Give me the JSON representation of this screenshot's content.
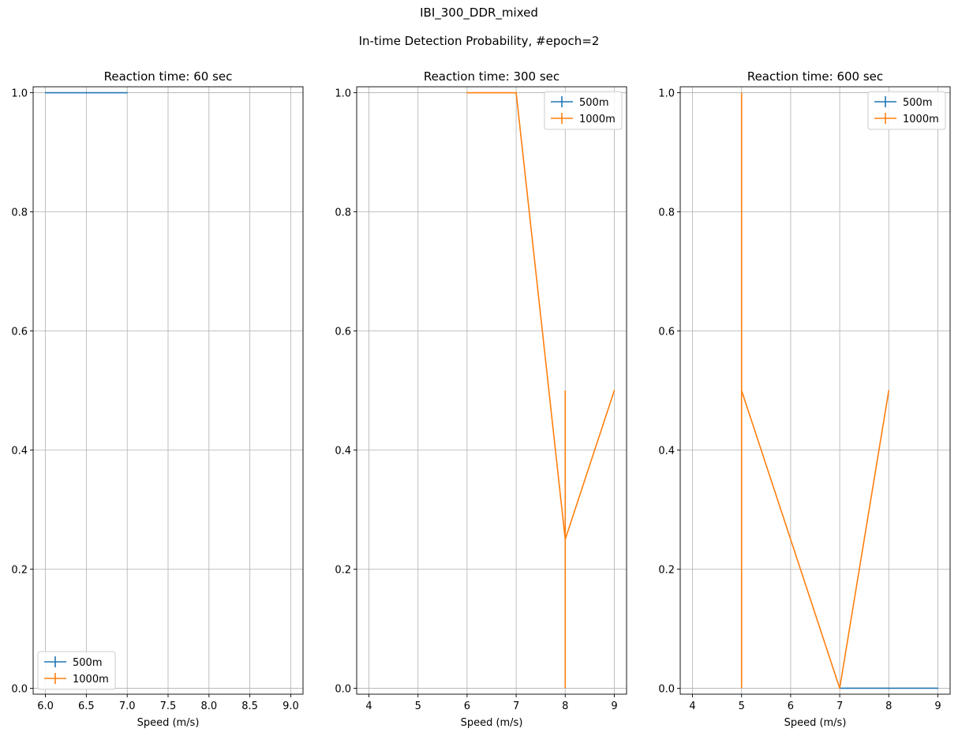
{
  "figure": {
    "title": "IBI_300_DDR_mixed",
    "subtitle": "In-time Detection Probability, #epoch=2"
  },
  "chart_data": [
    {
      "type": "line",
      "title": "Reaction time: 60 sec",
      "xlabel": "Speed (m/s)",
      "ylabel": "",
      "xlim": [
        5.85,
        9.15
      ],
      "ylim": [
        -0.01,
        1.01
      ],
      "xticks": [
        6.0,
        6.5,
        7.0,
        7.5,
        8.0,
        8.5,
        9.0
      ],
      "xtick_labels": [
        "6.0",
        "6.5",
        "7.0",
        "7.5",
        "8.0",
        "8.5",
        "9.0"
      ],
      "yticks": [
        0.0,
        0.2,
        0.4,
        0.6,
        0.8,
        1.0
      ],
      "ytick_labels": [
        "0.0",
        "0.2",
        "0.4",
        "0.6",
        "0.8",
        "1.0"
      ],
      "grid": true,
      "legend_position": "lower-left",
      "series": [
        {
          "name": "500m",
          "color": "#1f77b4",
          "points": [
            {
              "x": 6,
              "y": 1.0,
              "err": 0
            },
            {
              "x": 7,
              "y": 1.0,
              "err": 0
            }
          ]
        },
        {
          "name": "1000m",
          "color": "#ff7f0e",
          "points": []
        }
      ]
    },
    {
      "type": "line",
      "title": "Reaction time: 300 sec",
      "xlabel": "Speed (m/s)",
      "ylabel": "",
      "xlim": [
        3.75,
        9.25
      ],
      "ylim": [
        -0.01,
        1.01
      ],
      "xticks": [
        4,
        5,
        6,
        7,
        8,
        9
      ],
      "xtick_labels": [
        "4",
        "5",
        "6",
        "7",
        "8",
        "9"
      ],
      "yticks": [
        0.0,
        0.2,
        0.4,
        0.6,
        0.8,
        1.0
      ],
      "ytick_labels": [
        "0.0",
        "0.2",
        "0.4",
        "0.6",
        "0.8",
        "1.0"
      ],
      "grid": true,
      "legend_position": "upper-right",
      "series": [
        {
          "name": "500m",
          "color": "#1f77b4",
          "points": []
        },
        {
          "name": "1000m",
          "color": "#ff7f0e",
          "points": [
            {
              "x": 6,
              "y": 1.0,
              "err": 0
            },
            {
              "x": 7,
              "y": 1.0,
              "err": 0
            },
            {
              "x": 8,
              "y": 0.25,
              "err": 0.25
            },
            {
              "x": 9,
              "y": 0.5,
              "err": 0
            }
          ]
        }
      ]
    },
    {
      "type": "line",
      "title": "Reaction time: 600 sec",
      "xlabel": "Speed (m/s)",
      "ylabel": "",
      "xlim": [
        3.75,
        9.25
      ],
      "ylim": [
        -0.01,
        1.01
      ],
      "xticks": [
        4,
        5,
        6,
        7,
        8,
        9
      ],
      "xtick_labels": [
        "4",
        "5",
        "6",
        "7",
        "8",
        "9"
      ],
      "yticks": [
        0.0,
        0.2,
        0.4,
        0.6,
        0.8,
        1.0
      ],
      "ytick_labels": [
        "0.0",
        "0.2",
        "0.4",
        "0.6",
        "0.8",
        "1.0"
      ],
      "grid": true,
      "legend_position": "upper-right",
      "series": [
        {
          "name": "500m",
          "color": "#1f77b4",
          "points": [
            {
              "x": 7,
              "y": 0.0,
              "err": 0
            },
            {
              "x": 8,
              "y": 0.0,
              "err": 0
            },
            {
              "x": 9,
              "y": 0.0,
              "err": 0
            }
          ]
        },
        {
          "name": "1000m",
          "color": "#ff7f0e",
          "points": [
            {
              "x": 5,
              "y": 0.5,
              "err": 0.5
            },
            {
              "x": 7,
              "y": 0.0,
              "err": 0
            },
            {
              "x": 8,
              "y": 0.5,
              "err": 0
            }
          ]
        }
      ]
    }
  ]
}
